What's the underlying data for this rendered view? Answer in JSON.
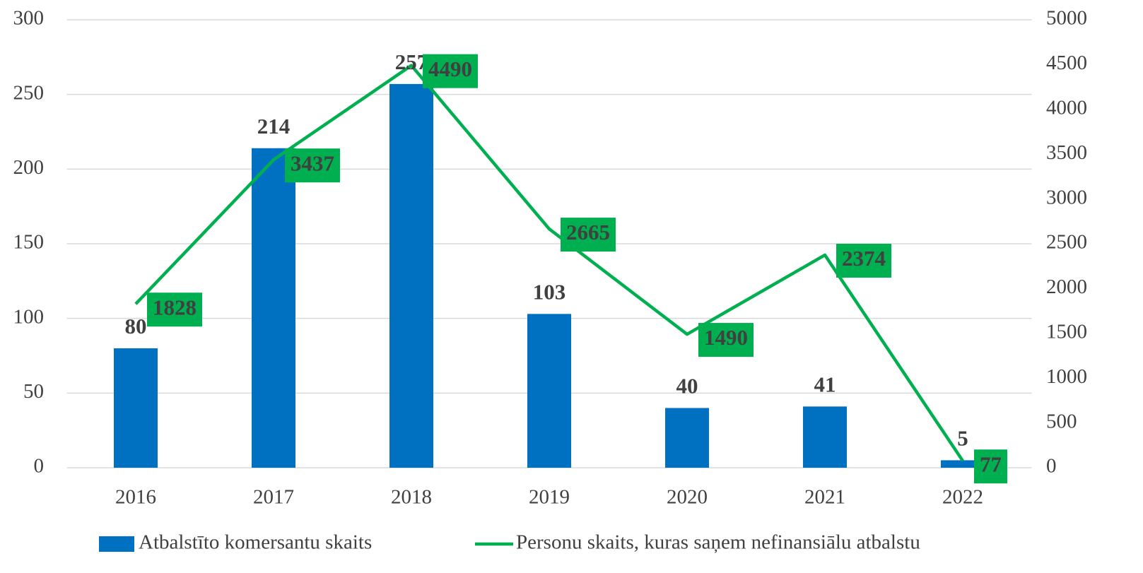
{
  "chart_data": {
    "type": "bar",
    "categories": [
      "2016",
      "2017",
      "2018",
      "2019",
      "2020",
      "2021",
      "2022"
    ],
    "series": [
      {
        "name": "Atbalstīto komersantu skaits",
        "color": "#0070c0",
        "values": [
          80,
          214,
          257,
          103,
          40,
          41,
          5
        ]
      },
      {
        "name": "Personu skaits, kuras saņem nefinansiālu atbalstu",
        "color": "#00b050",
        "type": "line",
        "axis": "y2",
        "values": [
          1828,
          3437,
          4490,
          2665,
          1490,
          2374,
          77
        ]
      }
    ],
    "ylim": [
      0,
      300
    ],
    "yticks": [
      0,
      50,
      100,
      150,
      200,
      250,
      300
    ],
    "y2lim": [
      0,
      5000
    ],
    "y2ticks": [
      0,
      500,
      1000,
      1500,
      2000,
      2500,
      3000,
      3500,
      4000,
      4500,
      5000
    ],
    "grid": true,
    "legend": "bottom"
  }
}
